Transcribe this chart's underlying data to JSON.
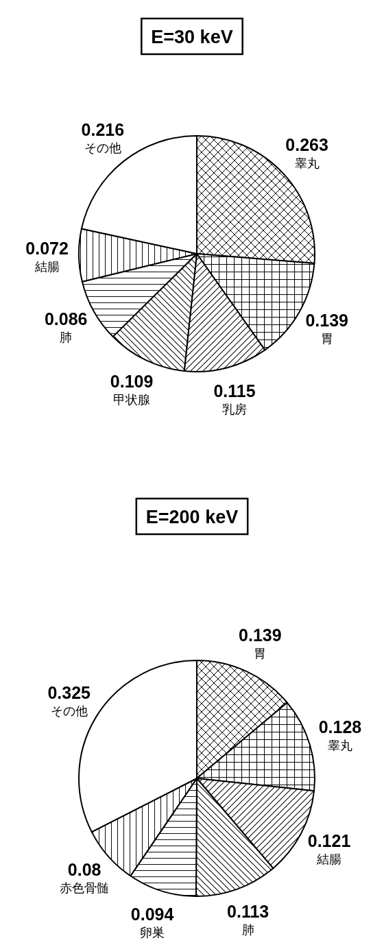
{
  "chart_data": [
    {
      "type": "pie",
      "title": "E=30 keV",
      "categories": [
        "睾丸",
        "胃",
        "乳房",
        "甲状腺",
        "肺",
        "結腸",
        "その他"
      ],
      "values": [
        0.263,
        0.139,
        0.115,
        0.109,
        0.086,
        0.072,
        0.216
      ],
      "colors": [
        "#ffffff",
        "#ffffff",
        "#ffffff",
        "#ffffff",
        "#ffffff",
        "#ffffff",
        "#ffffff"
      ],
      "data_labels": true
    },
    {
      "type": "pie",
      "title": "E=200 keV",
      "categories": [
        "胃",
        "睾丸",
        "結腸",
        "肺",
        "卵巣",
        "赤色骨髄",
        "その他"
      ],
      "values": [
        0.139,
        0.128,
        0.121,
        0.113,
        0.094,
        0.08,
        0.325
      ],
      "colors": [
        "#ffffff",
        "#ffffff",
        "#ffffff",
        "#ffffff",
        "#ffffff",
        "#ffffff",
        "#ffffff"
      ],
      "data_labels": true
    }
  ]
}
